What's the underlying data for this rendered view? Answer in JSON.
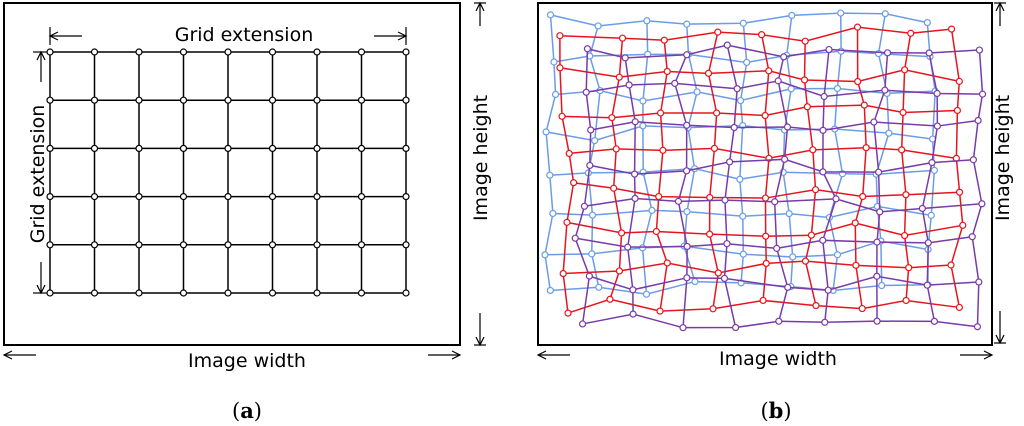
{
  "panel_a": {
    "top_label": "Grid extension",
    "side_label": "Grid extension",
    "bottom_label": "Image width",
    "right_label": "Image height",
    "caption_letter": "a",
    "grid_rows": 6,
    "grid_cols": 8
  },
  "panel_b": {
    "bottom_label": "Image width",
    "right_label": "Image height",
    "caption_letter": "b",
    "series": [
      {
        "name": "",
        "color": "#6a9ce8"
      },
      {
        "name": "",
        "color": "#e8141c"
      },
      {
        "name": "",
        "color": "#7a3aa8"
      }
    ]
  },
  "colors": {
    "grid_line": "#000000",
    "node_fill": "#ffffff"
  }
}
